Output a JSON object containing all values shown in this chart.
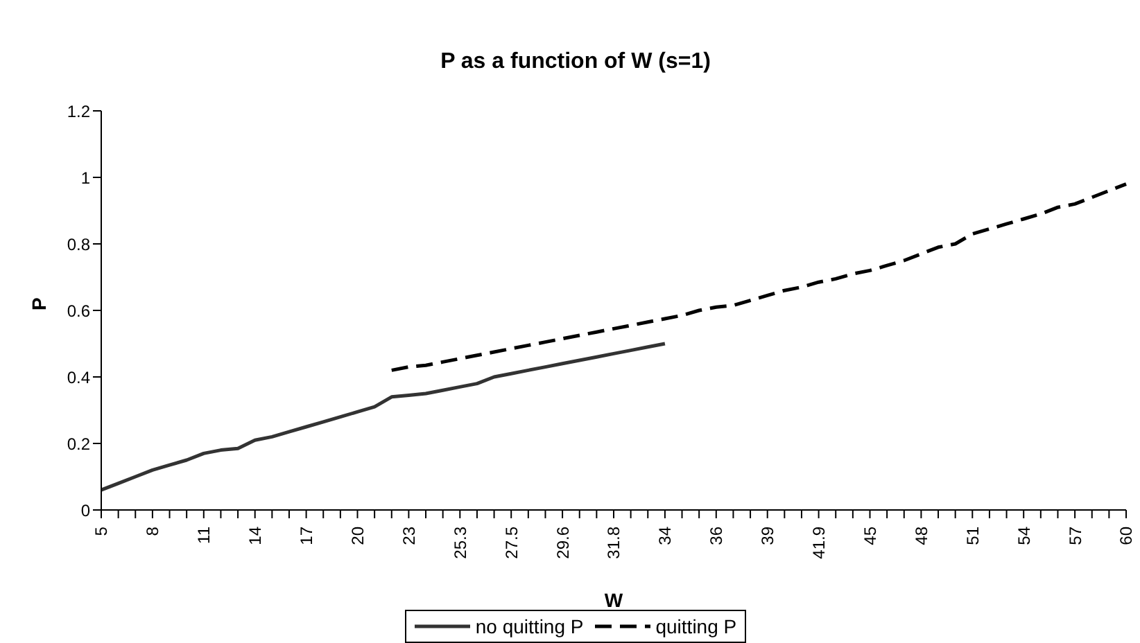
{
  "chart_data": {
    "type": "line",
    "title": "P as a function of W (s=1)",
    "xlabel": "W",
    "ylabel": "P",
    "categories": [
      "5",
      null,
      null,
      "8",
      null,
      null,
      "11",
      null,
      null,
      "14",
      null,
      null,
      "17",
      null,
      null,
      "20",
      null,
      null,
      "23",
      null,
      null,
      "25.3",
      null,
      null,
      "27.5",
      null,
      null,
      "29.6",
      null,
      null,
      "31.8",
      null,
      null,
      "34",
      null,
      null,
      "36",
      null,
      null,
      "39",
      null,
      null,
      "41.9",
      null,
      null,
      "45",
      null,
      null,
      "48",
      null,
      null,
      "51",
      null,
      null,
      "54",
      null,
      null,
      "57",
      null,
      null,
      "60"
    ],
    "ylim": [
      0,
      1.2
    ],
    "yticks": [
      0,
      0.2,
      0.4,
      0.6,
      0.8,
      1,
      1.2
    ],
    "legend": "bottom",
    "series": [
      {
        "name": "no quitting P",
        "color": "#333333",
        "line_style": "solid",
        "values": [
          0.06,
          0.08,
          0.1,
          0.12,
          0.135,
          0.15,
          0.17,
          0.18,
          0.185,
          0.21,
          0.22,
          0.235,
          0.25,
          0.265,
          0.28,
          0.295,
          0.31,
          0.34,
          0.345,
          0.35,
          0.36,
          0.37,
          0.38,
          0.4,
          0.41,
          0.42,
          0.43,
          0.44,
          0.45,
          0.46,
          0.47,
          0.48,
          0.49,
          0.5,
          null,
          null,
          null,
          null,
          null,
          null,
          null,
          null,
          null,
          null,
          null,
          null,
          null,
          null,
          null,
          null,
          null,
          null,
          null,
          null,
          null,
          null,
          null,
          null,
          null,
          null,
          null
        ]
      },
      {
        "name": "quitting P",
        "color": "#000000",
        "line_style": "dashed",
        "values": [
          null,
          null,
          null,
          null,
          null,
          null,
          null,
          null,
          null,
          null,
          null,
          null,
          null,
          null,
          null,
          null,
          null,
          0.42,
          0.43,
          0.435,
          0.445,
          0.455,
          0.465,
          0.475,
          0.485,
          0.495,
          0.505,
          0.515,
          0.525,
          0.535,
          0.545,
          0.555,
          0.565,
          0.575,
          0.585,
          0.6,
          0.61,
          0.615,
          0.63,
          0.645,
          0.66,
          0.67,
          0.685,
          0.695,
          0.71,
          0.72,
          0.735,
          0.75,
          0.77,
          0.79,
          0.8,
          0.83,
          0.845,
          0.86,
          0.875,
          0.89,
          0.91,
          0.92,
          0.94,
          0.96,
          0.98
        ]
      }
    ]
  }
}
